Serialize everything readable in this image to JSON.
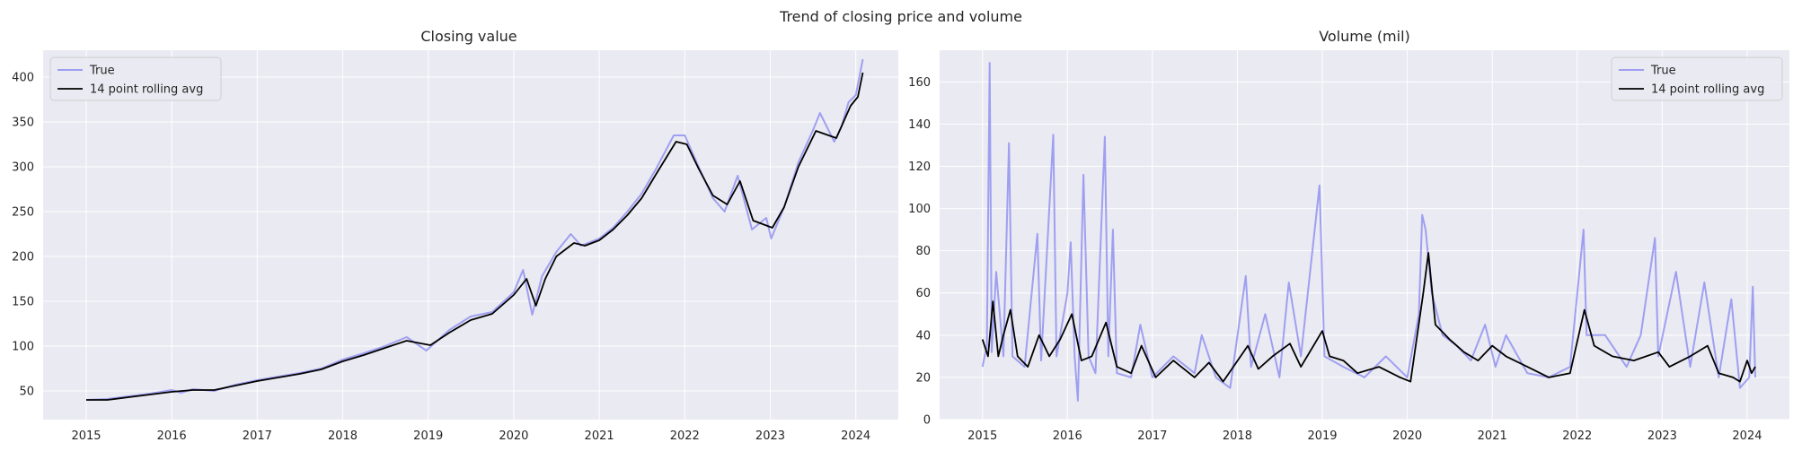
{
  "figure_title": "Trend of closing price and volume",
  "colors": {
    "true_line": "#8c8cf0",
    "rolling_line": "#000000",
    "panel_bg": "#eaeaf2",
    "grid": "#ffffff"
  },
  "chart_data": [
    {
      "type": "line",
      "title": "Closing value",
      "xlabel": "",
      "ylabel": "",
      "x_ticks": [
        "2015",
        "2016",
        "2017",
        "2018",
        "2019",
        "2020",
        "2021",
        "2022",
        "2023",
        "2024"
      ],
      "y_ticks": [
        50,
        100,
        150,
        200,
        250,
        300,
        350,
        400
      ],
      "xlim": [
        "2014-07-01",
        "2024-07-01"
      ],
      "ylim": [
        18,
        430
      ],
      "grid": true,
      "legend_position": "top-left",
      "series": [
        {
          "name": "True",
          "color": "#8c8cf0",
          "points": [
            [
              "2015-01-01",
              40
            ],
            [
              "2015-04-01",
              41
            ],
            [
              "2015-07-01",
              44
            ],
            [
              "2015-10-01",
              47
            ],
            [
              "2016-01-01",
              51
            ],
            [
              "2016-02-10",
              48
            ],
            [
              "2016-04-01",
              52
            ],
            [
              "2016-07-01",
              50
            ],
            [
              "2016-10-01",
              57
            ],
            [
              "2017-01-01",
              62
            ],
            [
              "2017-04-01",
              66
            ],
            [
              "2017-07-01",
              70
            ],
            [
              "2017-10-01",
              75
            ],
            [
              "2018-01-01",
              85
            ],
            [
              "2018-04-01",
              92
            ],
            [
              "2018-07-01",
              100
            ],
            [
              "2018-10-01",
              110
            ],
            [
              "2018-12-24",
              95
            ],
            [
              "2019-04-01",
              118
            ],
            [
              "2019-07-01",
              133
            ],
            [
              "2019-10-01",
              138
            ],
            [
              "2020-01-01",
              160
            ],
            [
              "2020-02-10",
              185
            ],
            [
              "2020-03-20",
              135
            ],
            [
              "2020-05-01",
              178
            ],
            [
              "2020-07-01",
              205
            ],
            [
              "2020-09-01",
              225
            ],
            [
              "2020-10-15",
              212
            ],
            [
              "2021-01-01",
              220
            ],
            [
              "2021-03-01",
              232
            ],
            [
              "2021-05-01",
              250
            ],
            [
              "2021-07-01",
              270
            ],
            [
              "2021-09-01",
              298
            ],
            [
              "2021-11-15",
              335
            ],
            [
              "2022-01-01",
              335
            ],
            [
              "2022-03-01",
              300
            ],
            [
              "2022-05-01",
              265
            ],
            [
              "2022-06-20",
              250
            ],
            [
              "2022-08-15",
              290
            ],
            [
              "2022-10-15",
              230
            ],
            [
              "2022-12-15",
              243
            ],
            [
              "2023-01-05",
              220
            ],
            [
              "2023-03-01",
              255
            ],
            [
              "2023-05-01",
              305
            ],
            [
              "2023-07-01",
              340
            ],
            [
              "2023-08-01",
              360
            ],
            [
              "2023-10-01",
              328
            ],
            [
              "2023-11-01",
              345
            ],
            [
              "2023-12-01",
              372
            ],
            [
              "2024-01-01",
              380
            ],
            [
              "2024-01-31",
              420
            ]
          ]
        },
        {
          "name": "14 point rolling avg",
          "color": "#000000",
          "points": [
            [
              "2015-01-01",
              40
            ],
            [
              "2015-04-01",
              40
            ],
            [
              "2015-07-01",
              43
            ],
            [
              "2015-10-01",
              46
            ],
            [
              "2016-01-01",
              49
            ],
            [
              "2016-04-01",
              51
            ],
            [
              "2016-07-01",
              51
            ],
            [
              "2016-10-01",
              56
            ],
            [
              "2017-01-01",
              61
            ],
            [
              "2017-04-01",
              65
            ],
            [
              "2017-07-01",
              69
            ],
            [
              "2017-10-01",
              74
            ],
            [
              "2018-01-01",
              83
            ],
            [
              "2018-04-01",
              90
            ],
            [
              "2018-07-01",
              98
            ],
            [
              "2018-10-01",
              106
            ],
            [
              "2019-01-10",
              101
            ],
            [
              "2019-04-01",
              115
            ],
            [
              "2019-07-01",
              129
            ],
            [
              "2019-10-01",
              136
            ],
            [
              "2020-01-01",
              157
            ],
            [
              "2020-02-25",
              175
            ],
            [
              "2020-04-05",
              145
            ],
            [
              "2020-05-15",
              175
            ],
            [
              "2020-07-01",
              200
            ],
            [
              "2020-09-15",
              215
            ],
            [
              "2020-11-01",
              212
            ],
            [
              "2021-01-01",
              218
            ],
            [
              "2021-03-01",
              230
            ],
            [
              "2021-05-01",
              246
            ],
            [
              "2021-07-01",
              265
            ],
            [
              "2021-09-01",
              292
            ],
            [
              "2021-11-25",
              328
            ],
            [
              "2022-01-10",
              325
            ],
            [
              "2022-03-01",
              298
            ],
            [
              "2022-05-01",
              268
            ],
            [
              "2022-07-01",
              258
            ],
            [
              "2022-08-25",
              284
            ],
            [
              "2022-10-20",
              240
            ],
            [
              "2023-01-10",
              232
            ],
            [
              "2023-03-01",
              255
            ],
            [
              "2023-05-01",
              300
            ],
            [
              "2023-07-15",
              340
            ],
            [
              "2023-10-10",
              332
            ],
            [
              "2023-12-10",
              368
            ],
            [
              "2024-01-10",
              378
            ],
            [
              "2024-01-31",
              405
            ]
          ]
        }
      ]
    },
    {
      "type": "line",
      "title": "Volume (mil)",
      "xlabel": "",
      "ylabel": "",
      "x_ticks": [
        "2015",
        "2016",
        "2017",
        "2018",
        "2019",
        "2020",
        "2021",
        "2022",
        "2023",
        "2024"
      ],
      "y_ticks": [
        0,
        20,
        40,
        60,
        80,
        100,
        120,
        140,
        160
      ],
      "xlim": [
        "2014-07-01",
        "2024-07-01"
      ],
      "ylim": [
        0,
        175
      ],
      "grid": true,
      "legend_position": "top-right",
      "series": [
        {
          "name": "True",
          "color": "#8c8cf0",
          "points": [
            [
              "2015-01-01",
              25
            ],
            [
              "2015-01-20",
              35
            ],
            [
              "2015-02-01",
              169
            ],
            [
              "2015-02-10",
              32
            ],
            [
              "2015-03-01",
              70
            ],
            [
              "2015-04-01",
              30
            ],
            [
              "2015-04-25",
              131
            ],
            [
              "2015-05-10",
              30
            ],
            [
              "2015-07-01",
              25
            ],
            [
              "2015-08-25",
              88
            ],
            [
              "2015-09-10",
              28
            ],
            [
              "2015-11-01",
              135
            ],
            [
              "2015-11-15",
              30
            ],
            [
              "2016-01-01",
              60
            ],
            [
              "2016-01-15",
              84
            ],
            [
              "2016-02-01",
              30
            ],
            [
              "2016-02-15",
              9
            ],
            [
              "2016-03-10",
              116
            ],
            [
              "2016-04-01",
              30
            ],
            [
              "2016-05-01",
              22
            ],
            [
              "2016-06-10",
              134
            ],
            [
              "2016-06-25",
              30
            ],
            [
              "2016-07-15",
              90
            ],
            [
              "2016-08-01",
              22
            ],
            [
              "2016-10-01",
              20
            ],
            [
              "2016-11-10",
              45
            ],
            [
              "2017-01-01",
              20
            ],
            [
              "2017-04-01",
              30
            ],
            [
              "2017-07-01",
              22
            ],
            [
              "2017-08-01",
              40
            ],
            [
              "2017-10-01",
              20
            ],
            [
              "2017-12-01",
              15
            ],
            [
              "2018-02-06",
              68
            ],
            [
              "2018-03-01",
              25
            ],
            [
              "2018-05-01",
              50
            ],
            [
              "2018-07-01",
              20
            ],
            [
              "2018-08-10",
              65
            ],
            [
              "2018-10-01",
              30
            ],
            [
              "2018-12-20",
              111
            ],
            [
              "2019-01-10",
              30
            ],
            [
              "2019-04-01",
              25
            ],
            [
              "2019-07-01",
              20
            ],
            [
              "2019-10-01",
              30
            ],
            [
              "2020-01-01",
              20
            ],
            [
              "2020-02-20",
              50
            ],
            [
              "2020-03-05",
              97
            ],
            [
              "2020-03-20",
              90
            ],
            [
              "2020-04-15",
              60
            ],
            [
              "2020-06-01",
              40
            ],
            [
              "2020-08-01",
              35
            ],
            [
              "2020-10-01",
              28
            ],
            [
              "2020-12-01",
              45
            ],
            [
              "2021-01-15",
              25
            ],
            [
              "2021-03-01",
              40
            ],
            [
              "2021-06-01",
              22
            ],
            [
              "2021-09-01",
              20
            ],
            [
              "2021-12-01",
              25
            ],
            [
              "2022-01-28",
              90
            ],
            [
              "2022-02-10",
              40
            ],
            [
              "2022-05-01",
              40
            ],
            [
              "2022-08-01",
              25
            ],
            [
              "2022-10-01",
              40
            ],
            [
              "2022-12-01",
              86
            ],
            [
              "2022-12-15",
              30
            ],
            [
              "2023-03-01",
              70
            ],
            [
              "2023-05-01",
              25
            ],
            [
              "2023-07-01",
              65
            ],
            [
              "2023-09-01",
              20
            ],
            [
              "2023-10-25",
              57
            ],
            [
              "2023-12-01",
              15
            ],
            [
              "2024-01-10",
              20
            ],
            [
              "2024-01-25",
              63
            ],
            [
              "2024-02-05",
              20
            ]
          ]
        },
        {
          "name": "14 point rolling avg",
          "color": "#000000",
          "points": [
            [
              "2015-01-01",
              38
            ],
            [
              "2015-01-25",
              30
            ],
            [
              "2015-02-15",
              56
            ],
            [
              "2015-03-10",
              30
            ],
            [
              "2015-04-01",
              40
            ],
            [
              "2015-05-01",
              52
            ],
            [
              "2015-06-01",
              30
            ],
            [
              "2015-07-15",
              25
            ],
            [
              "2015-09-01",
              40
            ],
            [
              "2015-10-15",
              30
            ],
            [
              "2015-12-01",
              38
            ],
            [
              "2016-01-20",
              50
            ],
            [
              "2016-03-01",
              28
            ],
            [
              "2016-04-15",
              30
            ],
            [
              "2016-06-15",
              46
            ],
            [
              "2016-08-01",
              25
            ],
            [
              "2016-10-01",
              22
            ],
            [
              "2016-11-15",
              35
            ],
            [
              "2017-01-15",
              20
            ],
            [
              "2017-04-01",
              28
            ],
            [
              "2017-07-01",
              20
            ],
            [
              "2017-09-01",
              27
            ],
            [
              "2017-11-01",
              18
            ],
            [
              "2018-02-15",
              35
            ],
            [
              "2018-04-01",
              24
            ],
            [
              "2018-06-01",
              30
            ],
            [
              "2018-08-15",
              36
            ],
            [
              "2018-10-01",
              25
            ],
            [
              "2019-01-01",
              42
            ],
            [
              "2019-02-01",
              30
            ],
            [
              "2019-04-01",
              28
            ],
            [
              "2019-06-01",
              22
            ],
            [
              "2019-09-01",
              25
            ],
            [
              "2019-12-01",
              20
            ],
            [
              "2020-01-15",
              18
            ],
            [
              "2020-03-10",
              60
            ],
            [
              "2020-04-01",
              79
            ],
            [
              "2020-05-01",
              45
            ],
            [
              "2020-07-01",
              38
            ],
            [
              "2020-09-01",
              32
            ],
            [
              "2020-11-01",
              28
            ],
            [
              "2021-01-01",
              35
            ],
            [
              "2021-03-01",
              30
            ],
            [
              "2021-06-01",
              25
            ],
            [
              "2021-09-01",
              20
            ],
            [
              "2021-12-01",
              22
            ],
            [
              "2022-02-01",
              52
            ],
            [
              "2022-03-15",
              35
            ],
            [
              "2022-06-01",
              30
            ],
            [
              "2022-09-01",
              28
            ],
            [
              "2022-12-15",
              32
            ],
            [
              "2023-02-01",
              25
            ],
            [
              "2023-05-01",
              30
            ],
            [
              "2023-07-15",
              35
            ],
            [
              "2023-09-01",
              22
            ],
            [
              "2023-11-01",
              20
            ],
            [
              "2023-12-01",
              18
            ],
            [
              "2024-01-01",
              28
            ],
            [
              "2024-01-20",
              22
            ],
            [
              "2024-02-05",
              25
            ]
          ]
        }
      ]
    }
  ]
}
